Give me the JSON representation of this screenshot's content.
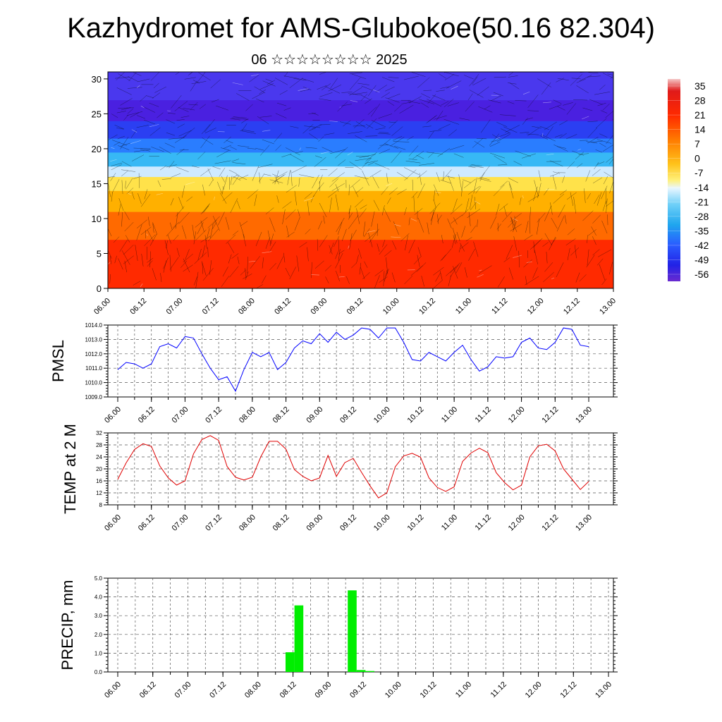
{
  "title": "Kazhydromet for AMS-Glubokoe(50.16 82.304)",
  "subtitle": "06 ☆☆☆☆☆☆☆☆ 2025",
  "chart_data": [
    {
      "type": "heatmap",
      "name": "temperature cross-section",
      "x_ticks": [
        "06.00",
        "06.12",
        "07.00",
        "07.12",
        "08.00",
        "08.12",
        "09.00",
        "09.12",
        "10.00",
        "10.12",
        "11.00",
        "11.12",
        "12.00",
        "12.12",
        "13.00"
      ],
      "y_ticks": [
        0,
        5,
        10,
        15,
        20,
        25,
        30
      ],
      "ylim": [
        0,
        31
      ],
      "colorbar_labels": [
        "35",
        "28",
        "21",
        "14",
        "7",
        "0",
        "-7",
        "-14",
        "-21",
        "-28",
        "-35",
        "-42",
        "-49",
        "-56"
      ],
      "bands": [
        {
          "from": 0,
          "to": 7,
          "color": "#ff2a00"
        },
        {
          "from": 7,
          "to": 11,
          "color": "#ff6a00"
        },
        {
          "from": 11,
          "to": 14,
          "color": "#ffb000"
        },
        {
          "from": 14,
          "to": 16,
          "color": "#ffe24a"
        },
        {
          "from": 16,
          "to": 17.5,
          "color": "#cfeaff"
        },
        {
          "from": 17.5,
          "to": 19.5,
          "color": "#37b8f5"
        },
        {
          "from": 19.5,
          "to": 21.5,
          "color": "#2a7dff"
        },
        {
          "from": 21.5,
          "to": 24,
          "color": "#2b3ff2"
        },
        {
          "from": 24,
          "to": 27,
          "color": "#4a20e0"
        },
        {
          "from": 27,
          "to": 31,
          "color": "#4a38ee"
        }
      ]
    },
    {
      "type": "line",
      "ylabel": "PMSL",
      "ylim": [
        1009.0,
        1014.0
      ],
      "y_ticks": [
        "1009.0",
        "1010.0",
        "1011.0",
        "1012.0",
        "1013.0",
        "1014.0"
      ],
      "x_ticks": [
        "06.00",
        "06.12",
        "07.00",
        "07.12",
        "08.00",
        "08.12",
        "09.00",
        "09.12",
        "10.00",
        "10.12",
        "11.00",
        "11.12",
        "12.00",
        "12.12",
        "13.00"
      ],
      "color": "#0000ff",
      "values": [
        1010.9,
        1011.4,
        1011.3,
        1011.0,
        1011.3,
        1012.5,
        1012.7,
        1012.4,
        1013.2,
        1013.1,
        1012.0,
        1011.0,
        1010.2,
        1010.4,
        1009.4,
        1010.9,
        1012.1,
        1011.8,
        1012.1,
        1010.9,
        1011.4,
        1012.4,
        1012.9,
        1012.7,
        1013.4,
        1012.8,
        1013.5,
        1013.0,
        1013.3,
        1013.8,
        1013.7,
        1013.1,
        1013.8,
        1013.8,
        1012.8,
        1011.6,
        1011.5,
        1012.1,
        1011.8,
        1011.5,
        1012.1,
        1012.6,
        1011.6,
        1010.8,
        1011.1,
        1011.8,
        1011.7,
        1011.8,
        1012.8,
        1013.1,
        1012.4,
        1012.3,
        1012.8,
        1013.8,
        1013.7,
        1012.6,
        1012.5
      ]
    },
    {
      "type": "line",
      "ylabel": "TEMP at 2 M",
      "ylim": [
        8,
        32
      ],
      "y_ticks": [
        "8",
        "12",
        "16",
        "20",
        "24",
        "28",
        "32"
      ],
      "x_ticks": [
        "06.00",
        "06.12",
        "07.00",
        "07.12",
        "08.00",
        "08.12",
        "09.00",
        "09.12",
        "10.00",
        "10.12",
        "11.00",
        "11.12",
        "12.00",
        "12.12",
        "13.00"
      ],
      "color": "#e00000",
      "values": [
        16.5,
        22,
        26.5,
        28.4,
        27.5,
        21,
        17,
        14.6,
        16,
        25,
        29.8,
        31.1,
        29.5,
        20.8,
        17.2,
        16.3,
        17.2,
        24,
        29.2,
        29.2,
        26.6,
        19.8,
        17.5,
        16,
        17,
        24.5,
        17.5,
        22.1,
        23.5,
        18.8,
        14.3,
        10.3,
        12,
        20.7,
        24.3,
        25.2,
        23.9,
        17,
        13.8,
        12.5,
        14,
        22.5,
        25.3,
        26.9,
        25.4,
        18.7,
        15.4,
        13,
        14.6,
        24,
        27.7,
        28.2,
        26,
        20,
        16.6,
        13.1,
        15.8
      ]
    },
    {
      "type": "bar",
      "ylabel": "PRECIP, mm",
      "ylim": [
        0.0,
        5.0
      ],
      "y_ticks": [
        "0.0",
        "1.0",
        "2.0",
        "3.0",
        "4.0",
        "5.0"
      ],
      "x_ticks": [
        "06.00",
        "06.12",
        "07.00",
        "07.12",
        "08.00",
        "08.12",
        "09.00",
        "09.12",
        "10.00",
        "10.12",
        "11.00",
        "11.12",
        "12.00",
        "12.12",
        "13.00"
      ],
      "color": "#00ee00",
      "bars": [
        {
          "t": 26,
          "value": 1.05
        },
        {
          "t": 27,
          "value": 3.55
        },
        {
          "t": 33,
          "value": 4.35
        },
        {
          "t": 34,
          "value": 0.1
        },
        {
          "t": 35,
          "value": 0.05
        }
      ]
    }
  ]
}
